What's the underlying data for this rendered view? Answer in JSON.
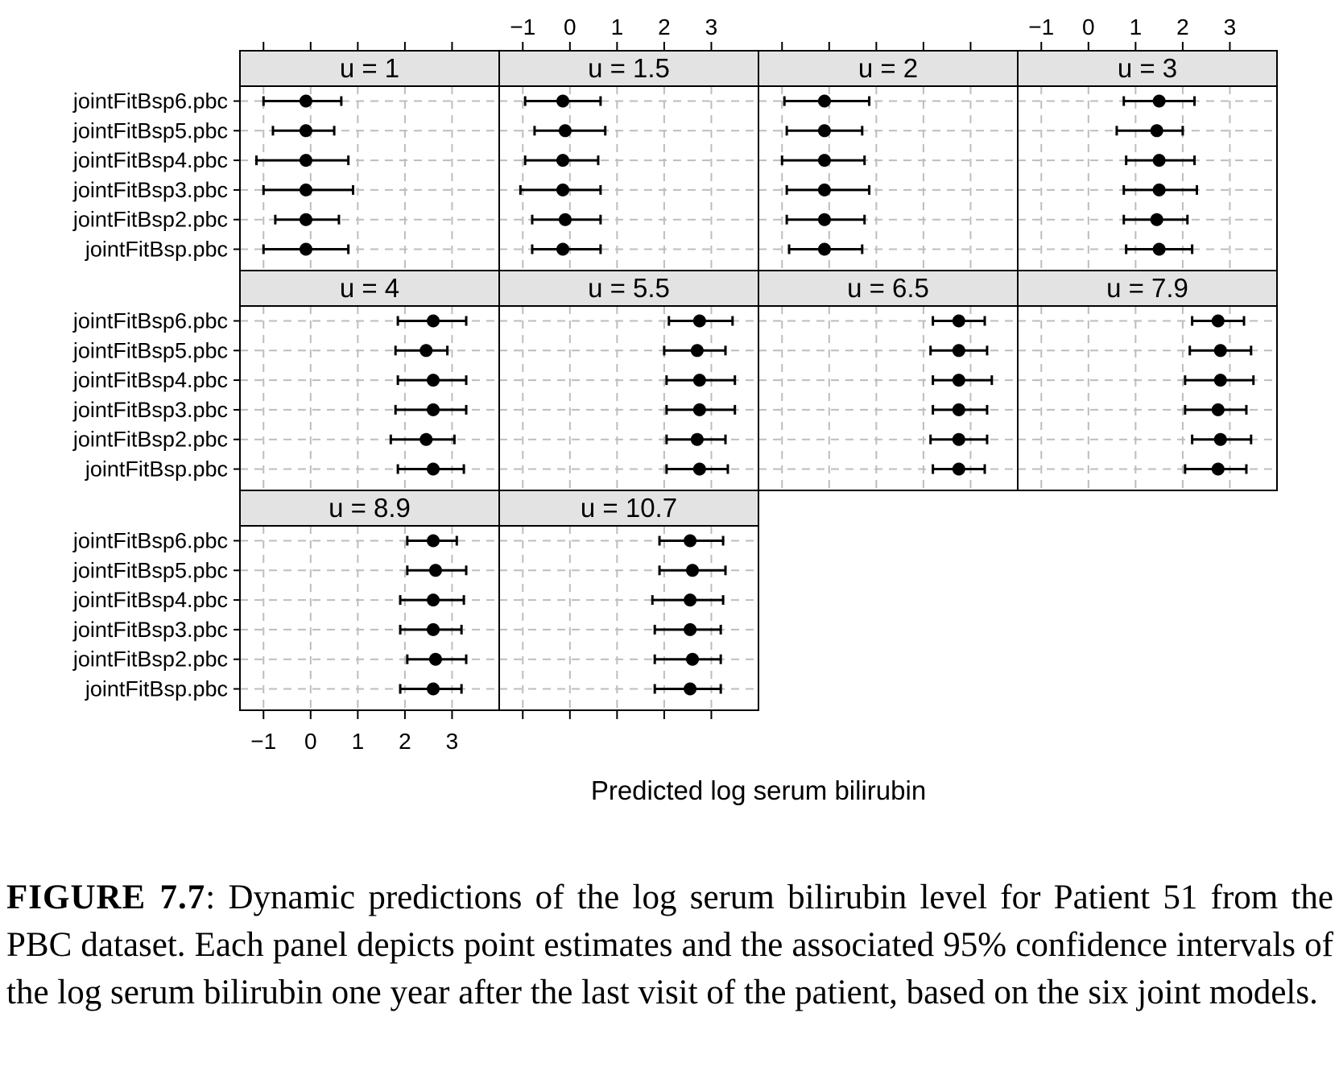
{
  "chart_data": {
    "type": "dotplot-errorbar",
    "xlabel": "Predicted log serum bilirubin",
    "xlim": [
      -1.5,
      4.0
    ],
    "xticks": [
      -1,
      0,
      1,
      2,
      3
    ],
    "xtick_labels": [
      "−1",
      "0",
      "1",
      "2",
      "3"
    ],
    "grid": true,
    "models": [
      "jointFitBsp6.pbc",
      "jointFitBsp5.pbc",
      "jointFitBsp4.pbc",
      "jointFitBsp3.pbc",
      "jointFitBsp2.pbc",
      "jointFitBsp.pbc"
    ],
    "panels": [
      {
        "label": "u = 1",
        "estimates": [
          -0.1,
          -0.1,
          -0.1,
          -0.1,
          -0.1,
          -0.1
        ],
        "lower": [
          -1.0,
          -0.8,
          -1.15,
          -1.0,
          -0.75,
          -1.0
        ],
        "upper": [
          0.65,
          0.5,
          0.8,
          0.9,
          0.6,
          0.8
        ]
      },
      {
        "label": "u = 1.5",
        "estimates": [
          -0.15,
          -0.1,
          -0.15,
          -0.15,
          -0.1,
          -0.15
        ],
        "lower": [
          -0.95,
          -0.75,
          -0.95,
          -1.05,
          -0.8,
          -0.8
        ],
        "upper": [
          0.65,
          0.75,
          0.6,
          0.65,
          0.65,
          0.65
        ]
      },
      {
        "label": "u = 2",
        "estimates": [
          -0.1,
          -0.1,
          -0.1,
          -0.1,
          -0.1,
          -0.1
        ],
        "lower": [
          -0.95,
          -0.9,
          -1.0,
          -0.9,
          -0.9,
          -0.85
        ],
        "upper": [
          0.85,
          0.7,
          0.75,
          0.85,
          0.75,
          0.7
        ]
      },
      {
        "label": "u = 3",
        "estimates": [
          1.5,
          1.45,
          1.5,
          1.5,
          1.45,
          1.5
        ],
        "lower": [
          0.75,
          0.6,
          0.8,
          0.75,
          0.75,
          0.8
        ],
        "upper": [
          2.25,
          2.0,
          2.25,
          2.3,
          2.1,
          2.2
        ]
      },
      {
        "label": "u = 4",
        "estimates": [
          2.6,
          2.45,
          2.6,
          2.6,
          2.45,
          2.6
        ],
        "lower": [
          1.85,
          1.8,
          1.85,
          1.8,
          1.7,
          1.85
        ],
        "upper": [
          3.3,
          2.9,
          3.3,
          3.3,
          3.05,
          3.25
        ]
      },
      {
        "label": "u = 5.5",
        "estimates": [
          2.75,
          2.7,
          2.75,
          2.75,
          2.7,
          2.75
        ],
        "lower": [
          2.1,
          2.0,
          2.05,
          2.05,
          2.05,
          2.05
        ],
        "upper": [
          3.45,
          3.3,
          3.5,
          3.5,
          3.3,
          3.35
        ]
      },
      {
        "label": "u = 6.5",
        "estimates": [
          2.75,
          2.75,
          2.75,
          2.75,
          2.75,
          2.75
        ],
        "lower": [
          2.2,
          2.15,
          2.2,
          2.2,
          2.15,
          2.2
        ],
        "upper": [
          3.3,
          3.35,
          3.45,
          3.35,
          3.35,
          3.3
        ]
      },
      {
        "label": "u = 7.9",
        "estimates": [
          2.75,
          2.8,
          2.8,
          2.75,
          2.8,
          2.75
        ],
        "lower": [
          2.2,
          2.15,
          2.05,
          2.05,
          2.2,
          2.05
        ],
        "upper": [
          3.3,
          3.45,
          3.5,
          3.35,
          3.45,
          3.35
        ]
      },
      {
        "label": "u = 8.9",
        "estimates": [
          2.6,
          2.65,
          2.6,
          2.6,
          2.65,
          2.6
        ],
        "lower": [
          2.05,
          2.05,
          1.9,
          1.9,
          2.05,
          1.9
        ],
        "upper": [
          3.1,
          3.3,
          3.25,
          3.2,
          3.3,
          3.2
        ]
      },
      {
        "label": "u = 10.7",
        "estimates": [
          2.55,
          2.6,
          2.55,
          2.55,
          2.6,
          2.55
        ],
        "lower": [
          1.9,
          1.9,
          1.75,
          1.8,
          1.8,
          1.8
        ],
        "upper": [
          3.25,
          3.3,
          3.25,
          3.2,
          3.2,
          3.2
        ]
      }
    ]
  },
  "caption": {
    "label": "FIGURE 7.7",
    "text": ": Dynamic predictions of the log serum bilirubin level for Patient 51 from the PBC dataset. Each panel depicts point estimates and the associated 95% confidence intervals of the log serum bilirubin one year after the last visit of the patient, based on the six joint models."
  }
}
